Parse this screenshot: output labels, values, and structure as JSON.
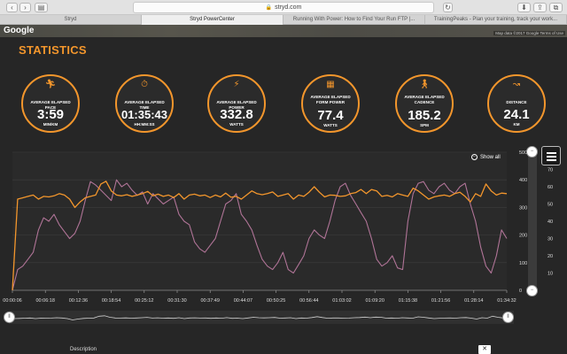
{
  "browser": {
    "url": "stryd.com",
    "tabs": [
      {
        "label": "Stryd",
        "active": false
      },
      {
        "label": "Stryd PowerCenter",
        "active": true
      },
      {
        "label": "Running With Power: How to Find Your Run FTP |...",
        "active": false
      },
      {
        "label": "TrainingPeaks - Plan your training, track your work...",
        "active": false
      }
    ]
  },
  "map": {
    "brand": "Google",
    "credit": "Map data ©2017 Google  Terms of Use"
  },
  "page": {
    "title": "STATISTICS"
  },
  "stats": [
    {
      "icon": "running-person-icon",
      "label": "AVERAGE ELAPSED PACE",
      "value": "3:59",
      "unit": "MIN/KM"
    },
    {
      "icon": "stopwatch-icon",
      "label": "AVERAGE ELAPSED TIME",
      "value": "01:35:43",
      "unit": "HH:MM:SS"
    },
    {
      "icon": "lightning-icon",
      "label": "AVERAGE ELAPSED POWER",
      "value": "332.8",
      "unit": "WATTS"
    },
    {
      "icon": "form-power-icon",
      "label": "AVERAGE ELAPSED FORM POWER",
      "value": "77.4",
      "unit": "WATTS"
    },
    {
      "icon": "walking-person-icon",
      "label": "AVERAGE ELAPSED CADENCE",
      "value": "185.2",
      "unit": "SPM"
    },
    {
      "icon": "route-icon",
      "label": "DISTANCE",
      "value": "24.1",
      "unit": "KM"
    }
  ],
  "controls": {
    "show_all": "Show all"
  },
  "description": {
    "label": "Description"
  },
  "colors": {
    "accent": "#f3962c",
    "series_power": "#f3962c",
    "series_form": "#b07497"
  },
  "chart_data": {
    "type": "line",
    "x_ticks": [
      "00:00:06",
      "00:06:18",
      "00:12:36",
      "00:18:54",
      "00:25:12",
      "00:31:30",
      "00:37:49",
      "00:44:07",
      "00:50:25",
      "00:56:44",
      "01:03:02",
      "01:09:20",
      "01:15:38",
      "01:21:56",
      "01:28:14",
      "01:34:32"
    ],
    "y_left_ticks": [
      "0",
      "100",
      "200",
      "300",
      "400",
      "500"
    ],
    "y_right_ticks": [
      "10",
      "20",
      "30",
      "40",
      "50",
      "60",
      "70"
    ],
    "x_range_minutes": [
      0,
      94.5
    ],
    "y_left_range": [
      0,
      500
    ],
    "y_right_range": [
      0,
      80
    ],
    "grid": true,
    "series": [
      {
        "axis": "left",
        "values": [
          0,
          330,
          335,
          340,
          345,
          330,
          340,
          338,
          342,
          350,
          345,
          330,
          300,
          320,
          335,
          340,
          345,
          385,
          395,
          360,
          345,
          342,
          346,
          340,
          345,
          350,
          358,
          342,
          348,
          340,
          345,
          336,
          350,
          330,
          345,
          348,
          342,
          345,
          336,
          345,
          338,
          352,
          337,
          340,
          330,
          345,
          360,
          350,
          346,
          350,
          356,
          340,
          345,
          350,
          330,
          345,
          340,
          355,
          375,
          355,
          338,
          345,
          344,
          340,
          342,
          350,
          354,
          365,
          350,
          365,
          360,
          340,
          344,
          338,
          350,
          345,
          340,
          370,
          360,
          345,
          330,
          338,
          342,
          345,
          340,
          350,
          355,
          340,
          320,
          350,
          340,
          385,
          360,
          345,
          352,
          350
        ]
      },
      {
        "axis": "right",
        "values": [
          0,
          12,
          14,
          18,
          22,
          35,
          42,
          40,
          44,
          38,
          34,
          30,
          33,
          40,
          52,
          63,
          61,
          58,
          55,
          52,
          64,
          60,
          62,
          58,
          55,
          57,
          50,
          56,
          53,
          50,
          52,
          54,
          44,
          40,
          38,
          28,
          24,
          22,
          26,
          30,
          40,
          50,
          52,
          56,
          44,
          40,
          35,
          26,
          18,
          14,
          12,
          16,
          22,
          12,
          10,
          15,
          20,
          30,
          35,
          32,
          30,
          40,
          52,
          60,
          62,
          55,
          50,
          45,
          40,
          30,
          18,
          14,
          16,
          20,
          13,
          12,
          40,
          56,
          62,
          63,
          58,
          56,
          60,
          62,
          58,
          56,
          60,
          62,
          50,
          40,
          25,
          14,
          10,
          20,
          35,
          30
        ]
      }
    ]
  }
}
